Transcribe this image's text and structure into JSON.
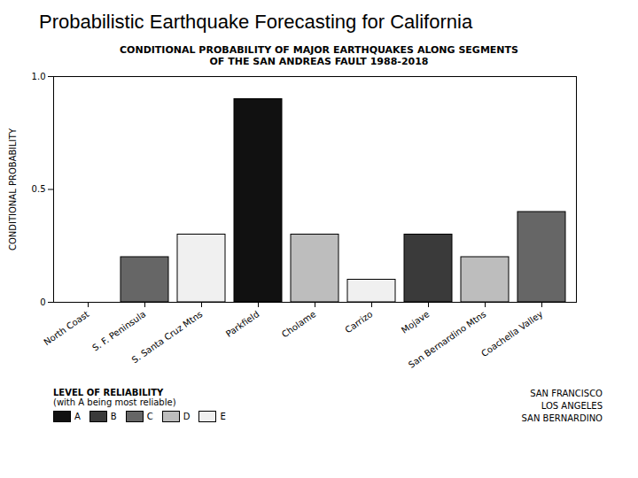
{
  "header": {
    "title": "Probabilistic Earthquake Forecasting for California"
  },
  "chart_data": {
    "type": "bar",
    "title": "CONDITIONAL PROBABILITY OF MAJOR EARTHQUAKES ALONG SEGMENTS OF THE SAN ANDREAS FAULT 1988-2018",
    "y_label": "CONDITIONAL PROBABILITY",
    "categories": [
      "North Coast",
      "S. F. Peninsula",
      "S. Santa Cruz Mtns",
      "Parkfield",
      "Cholame",
      "Carrizo",
      "Mojave",
      "San Bernardino Mtns",
      "Coachella Valley"
    ],
    "stacked": true,
    "series": [
      {
        "name": "A",
        "color": "#111111",
        "values": [
          null,
          null,
          null,
          0.9,
          null,
          null,
          null,
          null,
          null
        ]
      },
      {
        "name": "B",
        "color": "#3a3a3a",
        "values": [
          null,
          null,
          null,
          null,
          null,
          null,
          0.3,
          null,
          null
        ]
      },
      {
        "name": "C",
        "color": "#666666",
        "values": [
          null,
          0.2,
          null,
          null,
          null,
          null,
          null,
          null,
          0.4
        ]
      },
      {
        "name": "D",
        "color": "#bdbdbd",
        "values": [
          null,
          null,
          null,
          null,
          0.3,
          null,
          null,
          0.2,
          null
        ]
      },
      {
        "name": "E",
        "color": "#f0f0f0",
        "values": [
          null,
          null,
          0.3,
          null,
          null,
          0.1,
          null,
          null,
          null
        ]
      }
    ],
    "legend_title": "LEVEL OF RELIABILITY",
    "legend_subtitle": "(with A being most reliable)",
    "annotations": [
      "SAN FRANCISCO",
      "LOS ANGELES",
      "SAN BERNARDINO"
    ],
    "ylim": [
      0,
      1
    ],
    "yticks": [
      0,
      0.5,
      {
        "value": 1,
        "label": "1.0"
      }
    ],
    "grid": false
  }
}
